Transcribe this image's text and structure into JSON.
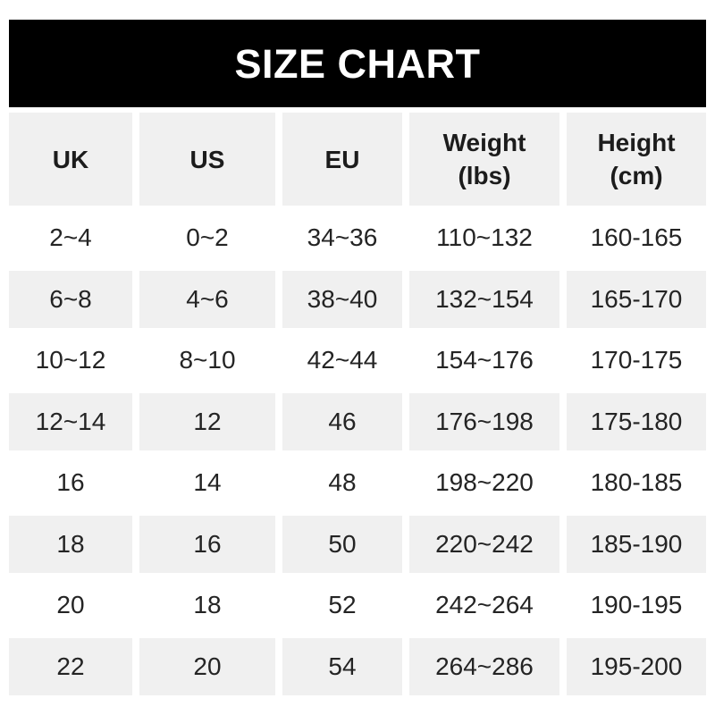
{
  "title": "SIZE CHART",
  "colors": {
    "banner_bg": "#000000",
    "banner_text": "#ffffff",
    "shaded_cell_bg": "#f0f0f0",
    "header_text": "#1c1c1c",
    "data_text": "#242424",
    "page_bg": "#ffffff"
  },
  "size_chart": {
    "headers": [
      {
        "id": "uk",
        "lines": [
          "UK"
        ]
      },
      {
        "id": "us",
        "lines": [
          "US"
        ]
      },
      {
        "id": "eu",
        "lines": [
          "EU"
        ]
      },
      {
        "id": "weight",
        "lines": [
          "Weight",
          "(lbs)"
        ]
      },
      {
        "id": "height",
        "lines": [
          "Height",
          "(cm)"
        ]
      }
    ],
    "rows": [
      [
        "2~4",
        "0~2",
        "34~36",
        "110~132",
        "160-165"
      ],
      [
        "6~8",
        "4~6",
        "38~40",
        "132~154",
        "165-170"
      ],
      [
        "10~12",
        "8~10",
        "42~44",
        "154~176",
        "170-175"
      ],
      [
        "12~14",
        "12",
        "46",
        "176~198",
        "175-180"
      ],
      [
        "16",
        "14",
        "48",
        "198~220",
        "180-185"
      ],
      [
        "18",
        "16",
        "50",
        "220~242",
        "185-190"
      ],
      [
        "20",
        "18",
        "52",
        "242~264",
        "190-195"
      ],
      [
        "22",
        "20",
        "54",
        "264~286",
        "195-200"
      ]
    ]
  },
  "chart_data": {
    "type": "table",
    "title": "SIZE CHART",
    "columns": [
      "UK",
      "US",
      "EU",
      "Weight (lbs)",
      "Height (cm)"
    ],
    "rows": [
      [
        "2~4",
        "0~2",
        "34~36",
        "110~132",
        "160-165"
      ],
      [
        "6~8",
        "4~6",
        "38~40",
        "132~154",
        "165-170"
      ],
      [
        "10~12",
        "8~10",
        "42~44",
        "154~176",
        "170-175"
      ],
      [
        "12~14",
        "12",
        "46",
        "176~198",
        "175-180"
      ],
      [
        "16",
        "14",
        "48",
        "198~220",
        "180-185"
      ],
      [
        "18",
        "16",
        "50",
        "220~242",
        "185-190"
      ],
      [
        "20",
        "18",
        "52",
        "242~264",
        "190-195"
      ],
      [
        "22",
        "20",
        "54",
        "264~286",
        "195-200"
      ]
    ],
    "layout": {
      "header_row_shaded": true,
      "alternating_row_shading": "rows 2,4,6,8 shaded",
      "column_gaps": "white vertical gutters between columns"
    }
  }
}
